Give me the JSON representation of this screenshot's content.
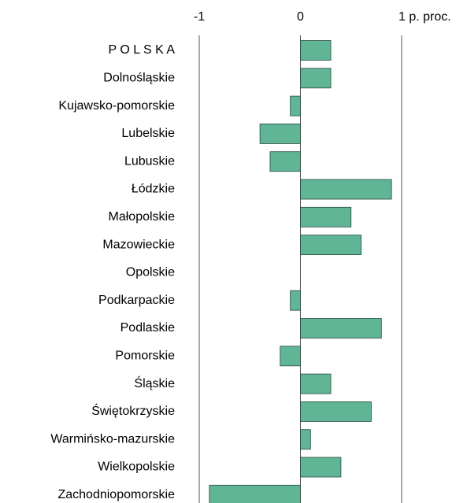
{
  "chart_data": {
    "type": "barh",
    "categories": [
      "P O L S K A",
      "Dolnośląskie",
      "Kujawsko-pomorskie",
      "Lubelskie",
      "Lubuskie",
      "Łódzkie",
      "Małopolskie",
      "Mazowieckie",
      "Opolskie",
      "Podkarpackie",
      "Podlaskie",
      "Pomorskie",
      "Śląskie",
      "Świętokrzyskie",
      "Warmińsko-mazurskie",
      "Wielkopolskie",
      "Zachodniopomorskie"
    ],
    "values": [
      0.3,
      0.3,
      -0.1,
      -0.4,
      -0.3,
      0.9,
      0.5,
      0.6,
      0,
      -0.1,
      0.8,
      -0.2,
      0.3,
      0.7,
      0.1,
      0.4,
      -0.9
    ],
    "color": "#5fb596",
    "xlim": [
      -1,
      1
    ],
    "xticks": [
      -1,
      0,
      {
        "value": 1,
        "label": "1 p. proc."
      }
    ],
    "grid": true
  }
}
